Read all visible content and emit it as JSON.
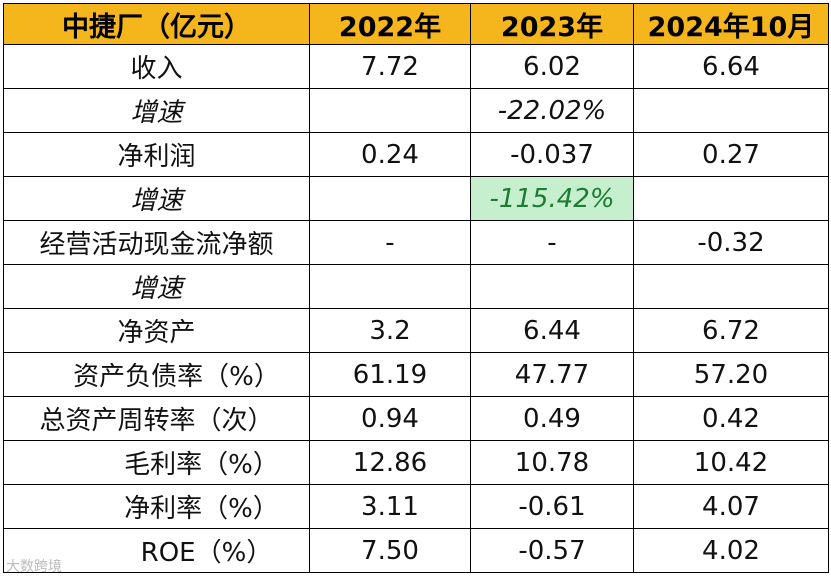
{
  "header": [
    "中捷厂（亿元）",
    "2022年",
    "2023年",
    "2024年10月"
  ],
  "rows": [
    {
      "label": "收入",
      "values": [
        "7.72",
        "6.02",
        "6.64"
      ]
    },
    {
      "label": "增速",
      "values": [
        "",
        "-22.02%",
        ""
      ]
    },
    {
      "label": "净利润",
      "values": [
        "0.24",
        "-0.037",
        "0.27"
      ]
    },
    {
      "label": "增速",
      "values": [
        "",
        "-115.42%",
        ""
      ]
    },
    {
      "label": "经营活动现金流净额",
      "values": [
        "-",
        "-",
        "-0.32"
      ]
    },
    {
      "label": "增速",
      "values": [
        "",
        "",
        ""
      ]
    },
    {
      "label": "净资产",
      "values": [
        "3.2",
        "6.44",
        "6.72"
      ]
    },
    {
      "label": "资产负债率（%）",
      "values": [
        "61.19",
        "47.77",
        "57.20"
      ]
    },
    {
      "label": "总资产周转率（次）",
      "values": [
        "0.94",
        "0.49",
        "0.42"
      ]
    },
    {
      "label": "毛利率（%）",
      "values": [
        "12.86",
        "10.78",
        "10.42"
      ]
    },
    {
      "label": "净利率（%）",
      "values": [
        "3.11",
        "-0.61",
        "4.07"
      ]
    },
    {
      "label": "ROE（%）",
      "values": [
        "7.50",
        "-0.57",
        "4.02"
      ]
    }
  ],
  "watermark": "大数跨境",
  "colors": {
    "header_bg": "#f5b51d",
    "growth_text": "#a6a6a6",
    "highlight_bg": "#c6efce",
    "highlight_text": "#1e7b34",
    "negative": "#e02020"
  }
}
